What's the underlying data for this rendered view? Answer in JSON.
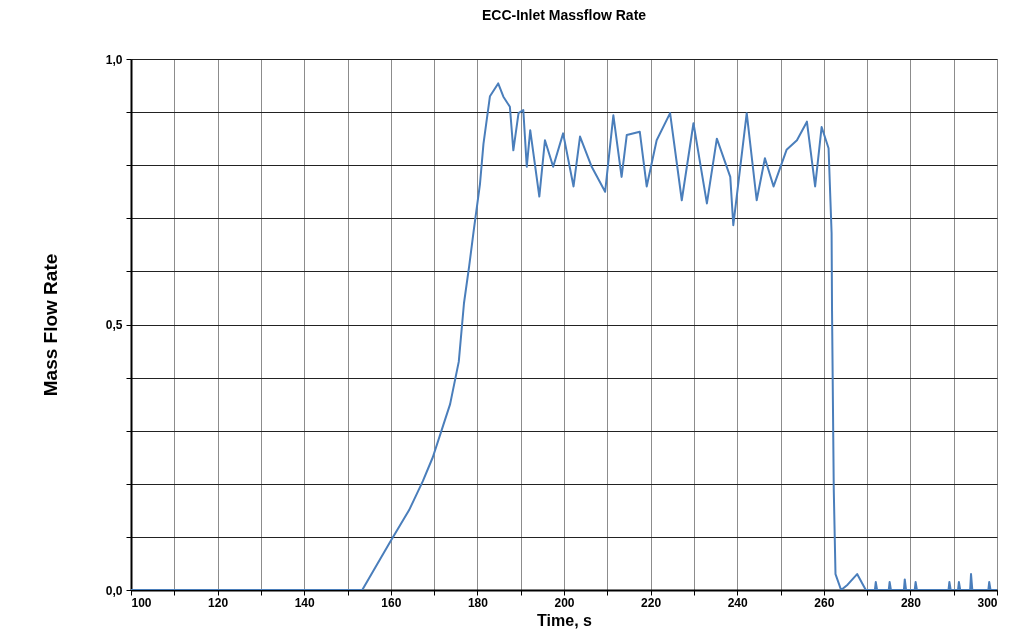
{
  "chart_data": {
    "type": "line",
    "title": "ECC-Inlet Massflow Rate",
    "xlabel": "Time, s",
    "ylabel": "Mass Flow Rate",
    "xlim": [
      100,
      300
    ],
    "ylim": [
      0,
      1
    ],
    "xticks": [
      100,
      {
        "value": 110,
        "label": null
      },
      120,
      {
        "value": 130,
        "label": null
      },
      140,
      {
        "value": 150,
        "label": null
      },
      160,
      {
        "value": 170,
        "label": null
      },
      180,
      {
        "value": 190,
        "label": null
      },
      200,
      {
        "value": 210,
        "label": null
      },
      220,
      {
        "value": 230,
        "label": null
      },
      240,
      {
        "value": 250,
        "label": null
      },
      260,
      {
        "value": 270,
        "label": null
      },
      280,
      {
        "value": 290,
        "label": null
      },
      300
    ],
    "yticks": [
      {
        "value": 0,
        "label": "0,0"
      },
      {
        "value": 0.1,
        "label": null
      },
      {
        "value": 0.2,
        "label": null
      },
      {
        "value": 0.3,
        "label": null
      },
      {
        "value": 0.4,
        "label": null
      },
      {
        "value": 0.5,
        "label": "0,5"
      },
      {
        "value": 0.6,
        "label": null
      },
      {
        "value": 0.7,
        "label": null
      },
      {
        "value": 0.8,
        "label": null
      },
      {
        "value": 0.9,
        "label": null
      },
      {
        "value": 1,
        "label": "1,0"
      }
    ],
    "grid": true,
    "line_style": "solid",
    "marker": "none",
    "series": [
      {
        "color": "#4a7ebb",
        "x": [
          100,
          153.4,
          159.8,
          164.2,
          167.4,
          169.7,
          172.1,
          173.7,
          175.7,
          176.9,
          178.1,
          179.2,
          180.6,
          181.4,
          182.9,
          184.8,
          186,
          187.5,
          188.3,
          189.5,
          190.6,
          191.4,
          192.2,
          194.3,
          195.6,
          197.5,
          199.8,
          202.2,
          203.7,
          206.4,
          209.5,
          211.4,
          213.3,
          214.5,
          217.5,
          219.1,
          221.4,
          224.5,
          227.2,
          229.9,
          233,
          235.3,
          238.4,
          239.1,
          242.2,
          244.5,
          246.4,
          248.4,
          251.4,
          253.8,
          256.1,
          258,
          259.5,
          261.1,
          261.8,
          261.9,
          262.3,
          262.7,
          264,
          265.5,
          267.7,
          269.7,
          271.8,
          272,
          272.3,
          275,
          275.2,
          275.5,
          278.5,
          278.7,
          279,
          281,
          281.2,
          281.5,
          288.8,
          289,
          289.3,
          291,
          291.2,
          291.5,
          293.8,
          294,
          294.3,
          298,
          298.2,
          298.5,
          300
        ],
        "values": [
          0,
          0,
          0.09,
          0.15,
          0.205,
          0.25,
          0.31,
          0.35,
          0.43,
          0.54,
          0.61,
          0.68,
          0.765,
          0.84,
          0.93,
          0.954,
          0.929,
          0.91,
          0.828,
          0.898,
          0.904,
          0.797,
          0.866,
          0.741,
          0.847,
          0.797,
          0.86,
          0.76,
          0.854,
          0.797,
          0.75,
          0.894,
          0.778,
          0.857,
          0.863,
          0.76,
          0.847,
          0.898,
          0.734,
          0.879,
          0.728,
          0.85,
          0.778,
          0.687,
          0.898,
          0.734,
          0.813,
          0.76,
          0.829,
          0.847,
          0.882,
          0.76,
          0.872,
          0.832,
          0.672,
          0.527,
          0.19,
          0.03,
          0,
          0.01,
          0.03,
          0,
          0,
          0.015,
          0,
          0,
          0.015,
          0,
          0,
          0.02,
          0,
          0,
          0.015,
          0,
          0,
          0.015,
          0,
          0,
          0.015,
          0,
          0,
          0.03,
          0,
          0,
          0.015,
          0,
          0
        ]
      }
    ]
  }
}
